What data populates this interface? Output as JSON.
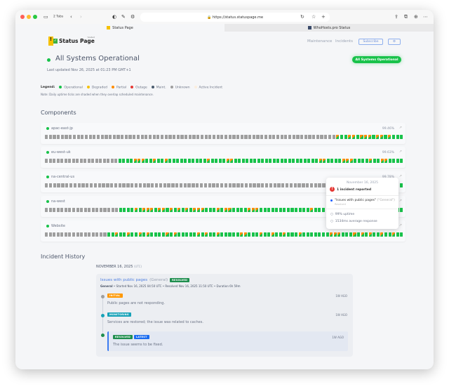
{
  "browser": {
    "tabs_count": "2 Tabs",
    "url": "https://status.statuspage.me",
    "tabs": [
      {
        "label": "Status Page",
        "active": true
      },
      {
        "label": "WhoHosts.pro Status",
        "active": false
      }
    ]
  },
  "header": {
    "logo_text": "Status Page",
    "logo_sub": "hosted",
    "nav": [
      "Maintenance",
      "Incidents"
    ],
    "subscribe": "Subscribe",
    "settings_icon": "gear-icon"
  },
  "status": {
    "title": "All Systems Operational",
    "last_updated": "Last updated Nov 26, 2025 at 01:23 PM GMT+1",
    "badge": "All Systems Operational"
  },
  "legend": {
    "label": "Legend:",
    "items": [
      {
        "label": "Operational",
        "color": "#18c24a"
      },
      {
        "label": "Degraded",
        "color": "#f5c000"
      },
      {
        "label": "Partial",
        "color": "#ff8c00"
      },
      {
        "label": "Outage",
        "color": "#e53935"
      },
      {
        "label": "Maint.",
        "color": "#4a5c6e"
      },
      {
        "label": "Unknown",
        "color": "#9e9e9e"
      },
      {
        "label": "Active Incident",
        "color": "#fbeede"
      }
    ],
    "note": "Note: Daily uptime ticks are shaded when they overlap scheduled maintenance."
  },
  "components": {
    "title": "Components",
    "items": [
      {
        "name": "apac-east-jp",
        "uptime": "99.46%",
        "ticks": "uuuuuuuuuuuuuuuuuuuuuuuuuuuuuuuuuuuuuuuuuuuuuuuuuuuuuuuuuuuuuuuuuuuuuuuuupooppopppoppopooo"
      },
      {
        "name": "eu-west-uk",
        "uptime": "99.63%",
        "ticks": "uuuuuuuuuuuuuuuuuuuoooopppoopoopoooooooooopooooppooooooooooooooooooooooppoooopppoooopooppoooo"
      },
      {
        "name": "na-central-us",
        "uptime": "99.78%",
        "ticks": "uuuuuuuuuuuuuuuuuuuuuuuuuuuuuuuuuuuuuuuuuuuuuuuuuuuuuuuuuuuuuuuuuuuuuuuuuuuuuuuuuooooooo"
      },
      {
        "name": "na-west",
        "uptime": "",
        "ticks": "uuuuuuuuuuuuuuuuuuuoooopopppoppopopopopppooopoppoooopppooooooooooooopoooooooooopoooopooooooo"
      },
      {
        "name": "Website",
        "uptime": "",
        "ticks": "uuuuuuuuuuuuuuuuoopoopoopopoooopopooooopopoopoooooppooopoopoopooopooooooopppooopopopoopoopoo"
      }
    ]
  },
  "tooltip": {
    "date": "November 16, 2025",
    "incidents": "1 incident reported",
    "incident_title": "\"Issues with public pages\"",
    "incident_group": "(\"General\")",
    "incident_status": "Resolved",
    "uptime": "99% uptime",
    "response": "1534ms average response"
  },
  "history": {
    "title": "Incident History",
    "date": "NOVEMBER 16, 2025",
    "tz": "(UTC)",
    "incident": {
      "title": "Issues with public pages",
      "group": "(General)",
      "badge": "RESOLVED",
      "meta_group": "General",
      "meta": " • Started Nov 16, 2025 04:50 UTC • Resolved Nov 16, 2025 11:50 UTC • Duration 6h 59m",
      "updates": [
        {
          "tag": "INITIAL",
          "tag_color": "#ff9800",
          "message": "Public pages are not responding.",
          "ago": "1W AGO"
        },
        {
          "tag": "MONITORING",
          "tag_color": "#17a2b8",
          "message": "Services are restored; the issue was related to caches.",
          "ago": "1W AGO"
        },
        {
          "tag": "RESOLVED",
          "tag2": "LATEST",
          "tag_color": "#1e8e4e",
          "message": "The issue seems to be fixed.",
          "ago": "1W AGO"
        }
      ]
    }
  }
}
